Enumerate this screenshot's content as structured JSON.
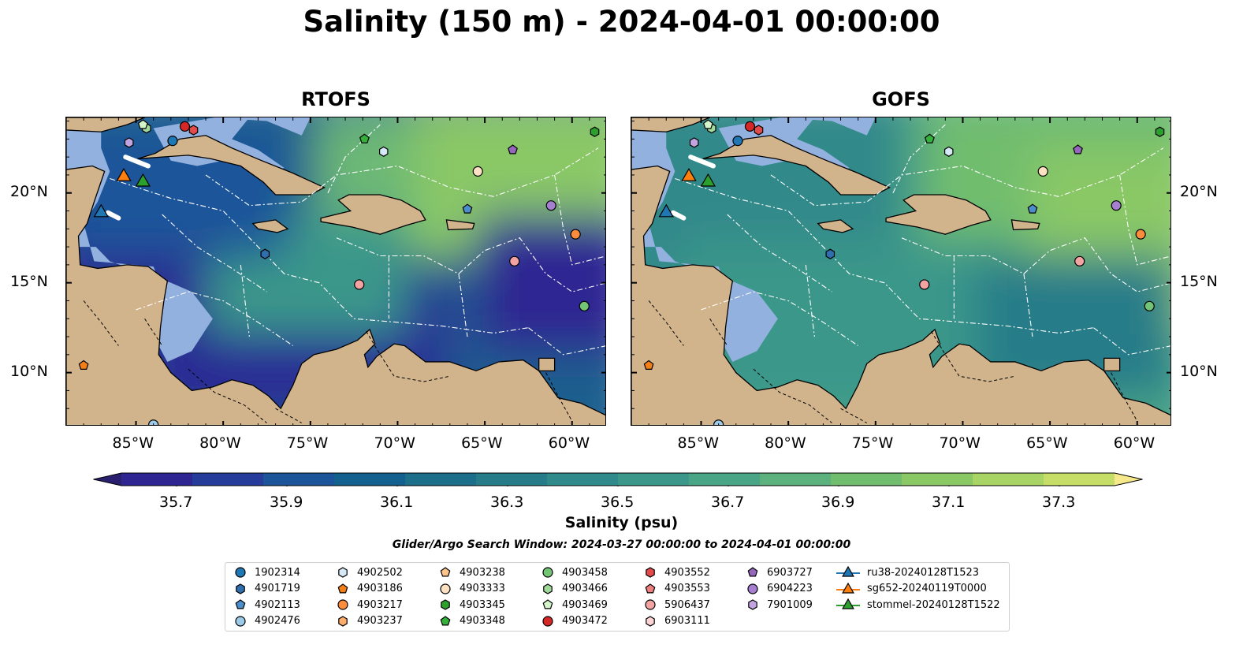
{
  "title": "Salinity (150 m) - 2024-04-01 00:00:00",
  "panels": [
    {
      "id": "rtofs",
      "title": "RTOFS"
    },
    {
      "id": "gofs",
      "title": "GOFS"
    }
  ],
  "map_extent": {
    "lon_min": -89,
    "lon_max": -58,
    "lat_min": 7,
    "lat_max": 24.2
  },
  "lon_ticks": [
    "85°W",
    "80°W",
    "75°W",
    "70°W",
    "65°W",
    "60°W"
  ],
  "lon_tick_values": [
    -85,
    -80,
    -75,
    -70,
    -65,
    -60
  ],
  "lat_ticks": [
    "20°N",
    "15°N",
    "10°N"
  ],
  "lat_tick_values": [
    20,
    15,
    10
  ],
  "colorbar": {
    "label": "Salinity (psu)",
    "ticks": [
      "35.7",
      "35.9",
      "36.1",
      "36.3",
      "36.5",
      "36.7",
      "36.9",
      "37.1",
      "37.3"
    ],
    "min": 35.6,
    "max": 37.4,
    "colors": [
      "#2a1f6e",
      "#2e2592",
      "#253c9a",
      "#1c549a",
      "#135f8e",
      "#1c6e8a",
      "#277c89",
      "#30898a",
      "#3b978a",
      "#4aa486",
      "#5cb17c",
      "#71bd6e",
      "#8ac866",
      "#a7d464",
      "#c6dd67",
      "#f6e98c"
    ],
    "cmap_name": "haline",
    "extend": "both"
  },
  "land_color": "#d2b48c",
  "shelf_color": "#93b1de",
  "search_window": "Glider/Argo Search Window: 2024-03-27 00:00:00 to 2024-04-01 00:00:00",
  "legend": [
    {
      "label": "1902314",
      "marker": "circle",
      "color": "#1f77b4"
    },
    {
      "label": "4901719",
      "marker": "hexagon",
      "color": "#2f6fad"
    },
    {
      "label": "4902113",
      "marker": "pentagon",
      "color": "#4a8fcc"
    },
    {
      "label": "4902476",
      "marker": "circle",
      "color": "#9ecae9"
    },
    {
      "label": "4902502",
      "marker": "hexagon",
      "color": "#d6e9f7"
    },
    {
      "label": "4903186",
      "marker": "pentagon",
      "color": "#f57f17"
    },
    {
      "label": "4903217",
      "marker": "circle",
      "color": "#fd8d3c"
    },
    {
      "label": "4903237",
      "marker": "hexagon",
      "color": "#fdae6b"
    },
    {
      "label": "4903238",
      "marker": "pentagon",
      "color": "#fdc48b"
    },
    {
      "label": "4903333",
      "marker": "circle",
      "color": "#fee0c2"
    },
    {
      "label": "4903345",
      "marker": "hexagon",
      "color": "#2ca02c"
    },
    {
      "label": "4903348",
      "marker": "pentagon",
      "color": "#35b03a"
    },
    {
      "label": "4903458",
      "marker": "circle",
      "color": "#74c476"
    },
    {
      "label": "4903466",
      "marker": "hexagon",
      "color": "#a1d99b"
    },
    {
      "label": "4903469",
      "marker": "pentagon",
      "color": "#d4f5c9"
    },
    {
      "label": "4903472",
      "marker": "circle",
      "color": "#d62728"
    },
    {
      "label": "4903552",
      "marker": "hexagon",
      "color": "#e34a4a"
    },
    {
      "label": "4903553",
      "marker": "pentagon",
      "color": "#f08080"
    },
    {
      "label": "5906437",
      "marker": "circle",
      "color": "#f4a3a3"
    },
    {
      "label": "6903111",
      "marker": "hexagon",
      "color": "#fcd3d3"
    },
    {
      "label": "6903727",
      "marker": "pentagon",
      "color": "#9467bd"
    },
    {
      "label": "6904223",
      "marker": "circle",
      "color": "#a77fd1"
    },
    {
      "label": "7901009",
      "marker": "hexagon",
      "color": "#c2a5e0"
    },
    {
      "label": "ru38-20240128T1523",
      "marker": "triangle-line",
      "color": "#1f77b4"
    },
    {
      "label": "sg652-20240119T0000",
      "marker": "triangle-line",
      "color": "#ff7f0e"
    },
    {
      "label": "stommel-20240128T1522",
      "marker": "triangle-line",
      "color": "#2ca02c"
    }
  ],
  "observations": [
    {
      "lon": -82.9,
      "lat": 22.9,
      "marker": "circle",
      "color": "#1f77b4"
    },
    {
      "lon": -77.6,
      "lat": 16.6,
      "marker": "hexagon",
      "color": "#2f6fad"
    },
    {
      "lon": -66.0,
      "lat": 19.1,
      "marker": "pentagon",
      "color": "#4a8fcc"
    },
    {
      "lon": -84.0,
      "lat": 7.1,
      "marker": "circle",
      "color": "#9ecae9"
    },
    {
      "lon": -70.8,
      "lat": 22.3,
      "marker": "hexagon",
      "color": "#d6e9f7"
    },
    {
      "lon": -88.0,
      "lat": 10.4,
      "marker": "pentagon",
      "color": "#f57f17"
    },
    {
      "lon": -59.8,
      "lat": 17.7,
      "marker": "circle",
      "color": "#fd8d3c"
    },
    {
      "lon": -63.3,
      "lat": 16.2,
      "marker": "circle",
      "color": "#f4a3a3"
    },
    {
      "lon": -65.4,
      "lat": 21.2,
      "marker": "circle",
      "color": "#fee0c2"
    },
    {
      "lon": -58.7,
      "lat": 23.4,
      "marker": "hexagon",
      "color": "#2ca02c"
    },
    {
      "lon": -71.9,
      "lat": 23.0,
      "marker": "pentagon",
      "color": "#35b03a"
    },
    {
      "lon": -59.3,
      "lat": 13.7,
      "marker": "circle",
      "color": "#74c476"
    },
    {
      "lon": -84.4,
      "lat": 23.6,
      "marker": "hexagon",
      "color": "#a1d99b"
    },
    {
      "lon": -84.6,
      "lat": 23.8,
      "marker": "pentagon",
      "color": "#d4f5c9"
    },
    {
      "lon": -82.2,
      "lat": 23.7,
      "marker": "circle",
      "color": "#d62728"
    },
    {
      "lon": -81.7,
      "lat": 23.5,
      "marker": "hexagon",
      "color": "#e34a4a"
    },
    {
      "lon": -72.2,
      "lat": 14.9,
      "marker": "circle",
      "color": "#f4a3a3"
    },
    {
      "lon": -63.4,
      "lat": 22.4,
      "marker": "pentagon",
      "color": "#9467bd"
    },
    {
      "lon": -61.2,
      "lat": 19.3,
      "marker": "circle",
      "color": "#a77fd1"
    },
    {
      "lon": -85.4,
      "lat": 22.8,
      "marker": "hexagon",
      "color": "#c2a5e0"
    },
    {
      "lon": -87.0,
      "lat": 18.9,
      "marker": "triangle",
      "color": "#1f77b4"
    },
    {
      "lon": -85.7,
      "lat": 20.9,
      "marker": "triangle",
      "color": "#ff7f0e"
    },
    {
      "lon": -84.6,
      "lat": 20.6,
      "marker": "triangle",
      "color": "#2ca02c"
    }
  ]
}
